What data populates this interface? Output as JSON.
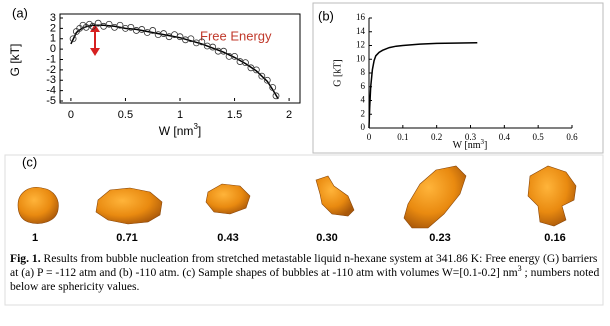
{
  "chart_data": [
    {
      "type": "line",
      "panel_label": "(a)",
      "y_label": "G [kT]",
      "x_label": "W [nm",
      "x_label_sup": "3",
      "x_label_end": "]",
      "annotation": "Free Energy",
      "xlim": [
        -0.1,
        2.1
      ],
      "ylim": [
        -5,
        3
      ],
      "xticks": [
        0,
        0.5,
        1,
        1.5,
        2
      ],
      "yticks": [
        3,
        2,
        1,
        0,
        -1,
        -2,
        -3,
        -4,
        -5
      ],
      "series": [
        {
          "style": "line",
          "color": "#000000",
          "x": [
            0,
            0.05,
            0.1,
            0.15,
            0.2,
            0.3,
            0.4,
            0.5,
            0.6,
            0.7,
            0.8,
            0.9,
            1.0,
            1.1,
            1.2,
            1.3,
            1.4,
            1.5,
            1.6,
            1.7,
            1.8,
            1.85,
            1.9
          ],
          "values": [
            0.5,
            1.6,
            2.0,
            2.2,
            2.3,
            2.3,
            2.2,
            2.0,
            1.9,
            1.7,
            1.5,
            1.3,
            1.1,
            0.8,
            0.5,
            0.1,
            -0.3,
            -0.8,
            -1.4,
            -2.1,
            -3.1,
            -3.9,
            -4.8
          ]
        },
        {
          "style": "markers",
          "color": "#333333",
          "x": [
            0.02,
            0.05,
            0.08,
            0.11,
            0.14,
            0.17,
            0.2,
            0.25,
            0.3,
            0.35,
            0.4,
            0.45,
            0.5,
            0.55,
            0.6,
            0.65,
            0.7,
            0.75,
            0.8,
            0.85,
            0.9,
            0.95,
            1.0,
            1.05,
            1.1,
            1.15,
            1.2,
            1.25,
            1.3,
            1.35,
            1.4,
            1.45,
            1.5,
            1.55,
            1.6,
            1.65,
            1.7,
            1.75,
            1.8,
            1.85,
            1.88
          ],
          "values": [
            1.0,
            1.7,
            2.0,
            2.3,
            2.1,
            2.4,
            2.2,
            2.5,
            2.2,
            2.4,
            2.1,
            2.3,
            2.0,
            2.1,
            1.8,
            1.9,
            1.6,
            1.8,
            1.4,
            1.5,
            1.2,
            1.4,
            1.2,
            0.9,
            1.0,
            0.6,
            0.7,
            0.3,
            0.2,
            -0.2,
            -0.2,
            -0.7,
            -0.7,
            -1.2,
            -1.3,
            -1.8,
            -2.0,
            -2.6,
            -3.0,
            -3.7,
            -4.5
          ]
        }
      ]
    },
    {
      "type": "line",
      "panel_label": "(b)",
      "y_label": "G [kT]",
      "x_label": "W [nm",
      "x_label_sup": "3",
      "x_label_end": "]",
      "xlim": [
        0,
        0.6
      ],
      "ylim": [
        0,
        16
      ],
      "xticks": [
        0,
        0.1,
        0.2,
        0.3,
        0.4,
        0.5,
        0.6
      ],
      "yticks": [
        0,
        2,
        4,
        6,
        8,
        10,
        12,
        14,
        16
      ],
      "series": [
        {
          "style": "line",
          "color": "#000000",
          "x": [
            0,
            0.002,
            0.005,
            0.01,
            0.015,
            0.02,
            0.03,
            0.04,
            0.06,
            0.08,
            0.1,
            0.15,
            0.2,
            0.25,
            0.32
          ],
          "values": [
            0,
            3,
            6,
            8.5,
            9.8,
            10.5,
            11.0,
            11.3,
            11.7,
            11.9,
            12.0,
            12.2,
            12.3,
            12.35,
            12.4
          ]
        }
      ]
    }
  ],
  "panel_c": {
    "label": "(c)",
    "sphericity": [
      "1",
      "0.71",
      "0.43",
      "0.30",
      "0.23",
      "0.16"
    ]
  },
  "caption": {
    "fig_label": "Fig. 1.",
    "text": " Results from bubble nucleation from stretched metastable liquid n-hexane system at 341.86 K: Free energy (G) barriers at  (a) P = -112 atm and (b) -110 atm. (c) Sample shapes of bubbles at -110 atm with volumes W=[0.1-0.2] nm",
    "sup": "3",
    "text_end": " ; numbers noted below are sphericity values."
  }
}
